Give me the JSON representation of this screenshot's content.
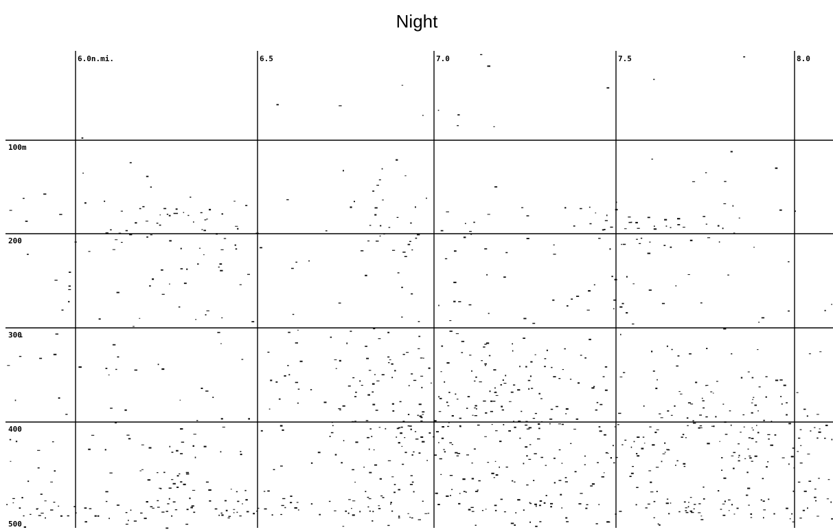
{
  "title": "Night",
  "distance_labels": [
    "6.0n.mi.",
    "6.5",
    "7.0",
    "7.5",
    "8.0"
  ],
  "depth_labels": [
    "100m",
    "200",
    "300",
    "400",
    "500"
  ]
}
